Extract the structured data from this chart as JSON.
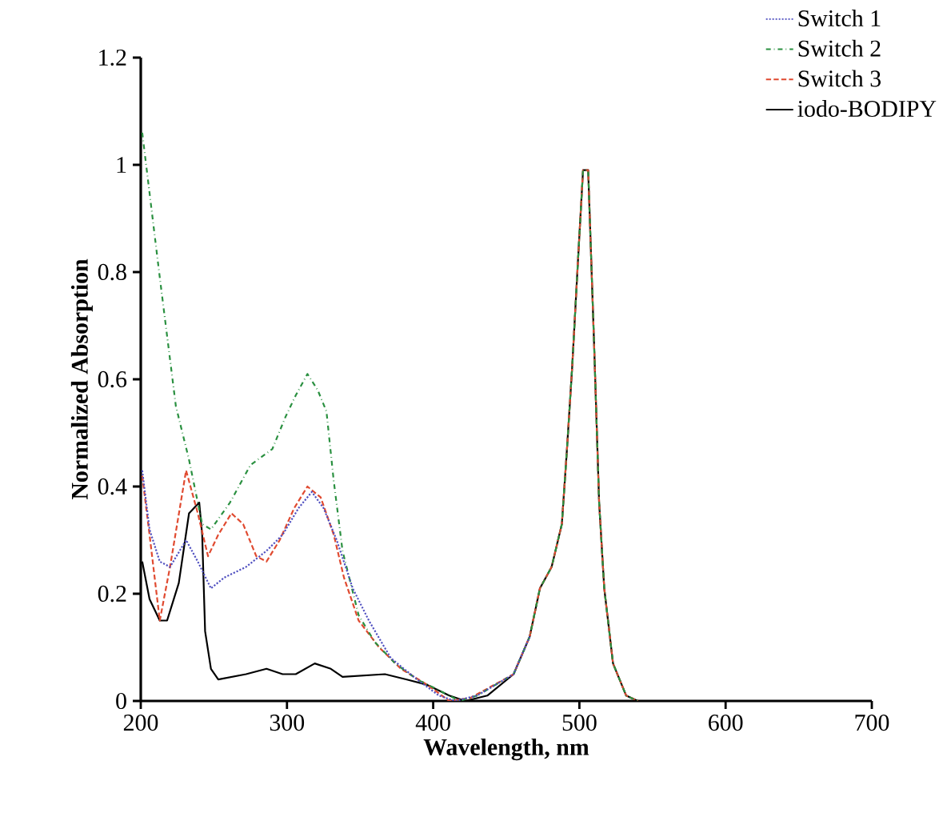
{
  "chart_data": {
    "type": "line",
    "xlabel": "Wavelength, nm",
    "ylabel": "Normalized Absorption",
    "xlim": [
      200,
      700
    ],
    "ylim": [
      0,
      1.2
    ],
    "xticks": [
      200,
      300,
      400,
      500,
      600,
      700
    ],
    "yticks": [
      0,
      0.2,
      0.4,
      0.6,
      0.8,
      1,
      1.2
    ],
    "legend": "top right",
    "grid": false,
    "series": [
      {
        "name": "Switch 1",
        "color": "#5050c0",
        "line_style": "dotted",
        "x": [
          201,
          206,
          213,
          220,
          231,
          239,
          248,
          257,
          272,
          286,
          297,
          308,
          317,
          325,
          334,
          345,
          356,
          371,
          389,
          404,
          415,
          430,
          455,
          466
        ],
        "values": [
          0.43,
          0.32,
          0.26,
          0.25,
          0.3,
          0.26,
          0.21,
          0.23,
          0.25,
          0.28,
          0.31,
          0.36,
          0.39,
          0.36,
          0.3,
          0.21,
          0.15,
          0.08,
          0.04,
          0.01,
          0,
          0.01,
          0.05,
          0.12
        ]
      },
      {
        "name": "Switch 2",
        "color": "#2a9040",
        "line_style": "dashdot",
        "x": [
          201,
          213,
          224,
          233,
          242,
          248,
          261,
          275,
          290,
          299,
          306,
          314,
          321,
          327,
          332,
          338,
          349,
          360,
          374,
          389,
          404,
          418,
          430,
          455,
          466,
          473,
          481,
          488,
          491.5,
          495,
          499,
          502.5,
          506,
          510,
          513.5,
          517,
          523,
          532,
          540
        ],
        "values": [
          1.06,
          0.79,
          0.55,
          0.45,
          0.33,
          0.32,
          0.37,
          0.44,
          0.47,
          0.53,
          0.57,
          0.61,
          0.58,
          0.54,
          0.41,
          0.28,
          0.16,
          0.11,
          0.07,
          0.04,
          0.02,
          0,
          0.01,
          0.05,
          0.12,
          0.21,
          0.25,
          0.33,
          0.47,
          0.62,
          0.82,
          0.99,
          0.99,
          0.67,
          0.37,
          0.21,
          0.07,
          0.01,
          0
        ]
      },
      {
        "name": "Switch 3",
        "color": "#e04a30",
        "line_style": "dashed",
        "x": [
          201,
          206,
          213,
          220,
          231,
          239,
          246,
          253,
          262,
          270,
          279,
          286,
          295,
          305,
          314,
          323,
          332,
          339,
          349,
          363,
          378,
          396,
          411,
          425,
          455,
          466,
          473,
          481,
          488,
          491.5,
          495,
          499,
          502.5,
          506,
          510,
          513.5,
          517,
          523,
          532,
          540
        ],
        "values": [
          0.42,
          0.31,
          0.15,
          0.25,
          0.43,
          0.35,
          0.27,
          0.31,
          0.35,
          0.33,
          0.27,
          0.26,
          0.3,
          0.36,
          0.4,
          0.38,
          0.31,
          0.23,
          0.15,
          0.1,
          0.06,
          0.03,
          0,
          0.005,
          0.05,
          0.12,
          0.21,
          0.25,
          0.33,
          0.47,
          0.62,
          0.82,
          0.99,
          0.99,
          0.67,
          0.37,
          0.21,
          0.07,
          0.01,
          0
        ]
      },
      {
        "name": "iodo-BODIPY",
        "color": "#000000",
        "line_style": "solid",
        "x": [
          201,
          206,
          213,
          218,
          226,
          233,
          240,
          242,
          244,
          248,
          253,
          272,
          286,
          297,
          306,
          319,
          330,
          338,
          367,
          382,
          396,
          411,
          422,
          437,
          455,
          466,
          473,
          481,
          488,
          491.5,
          495,
          499,
          502.5,
          506,
          510,
          513.5,
          517,
          523,
          532,
          540
        ],
        "values": [
          0.26,
          0.19,
          0.15,
          0.15,
          0.22,
          0.35,
          0.37,
          0.31,
          0.13,
          0.06,
          0.04,
          0.05,
          0.06,
          0.05,
          0.05,
          0.07,
          0.06,
          0.045,
          0.05,
          0.04,
          0.03,
          0.01,
          0,
          0.01,
          0.05,
          0.12,
          0.21,
          0.25,
          0.33,
          0.47,
          0.62,
          0.82,
          0.99,
          0.99,
          0.67,
          0.37,
          0.21,
          0.07,
          0.01,
          0
        ]
      }
    ]
  }
}
